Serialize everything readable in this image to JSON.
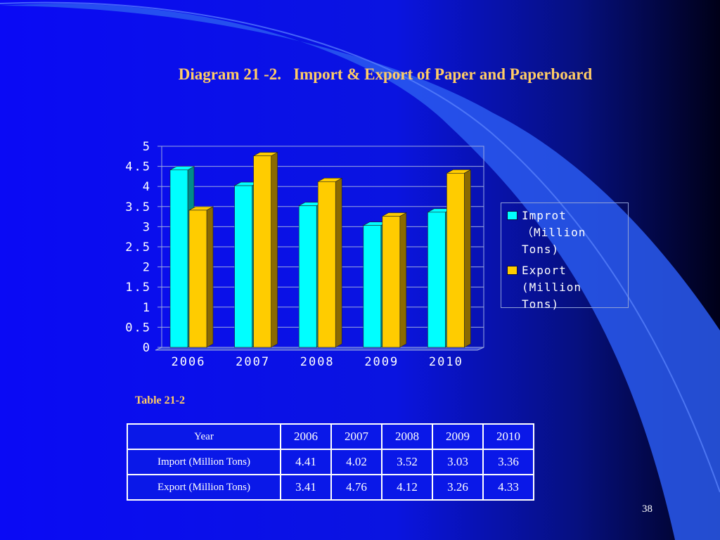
{
  "slide": {
    "title": "Diagram 21 -2.   Import & Export of Paper and Paperboard",
    "table_caption": "Table 21-2",
    "page_number": "38",
    "colors": {
      "background": "#0a14f0",
      "title": "#ffcc66",
      "import": "#00ffff",
      "export": "#ffcc00"
    }
  },
  "chart_data": {
    "type": "bar",
    "categories": [
      "2006",
      "2007",
      "2008",
      "2009",
      "2010"
    ],
    "series": [
      {
        "name": "Improt\n（Million\nTons)",
        "values": [
          4.41,
          4.02,
          3.52,
          3.03,
          3.36
        ],
        "color": "#00ffff",
        "side_color": "#008b8b"
      },
      {
        "name": "Export\n(Million\nTons)",
        "values": [
          3.41,
          4.76,
          4.12,
          3.26,
          4.33
        ],
        "color": "#ffcc00",
        "side_color": "#8b6a00"
      }
    ],
    "yticks": [
      "0",
      "0.5",
      "1",
      "1.5",
      "2",
      "2.5",
      "3",
      "3.5",
      "4",
      "4.5",
      "5"
    ],
    "ylim": [
      0,
      5
    ],
    "grid": true,
    "legend_position": "right"
  },
  "table": {
    "header": [
      "Year",
      "2006",
      "2007",
      "2008",
      "2009",
      "2010"
    ],
    "rows": [
      [
        "Import (Million Tons)",
        "4.41",
        "4.02",
        "3.52",
        "3.03",
        "3.36"
      ],
      [
        "Export (Million Tons)",
        "3.41",
        "4.76",
        "4.12",
        "3.26",
        "4.33"
      ]
    ]
  }
}
